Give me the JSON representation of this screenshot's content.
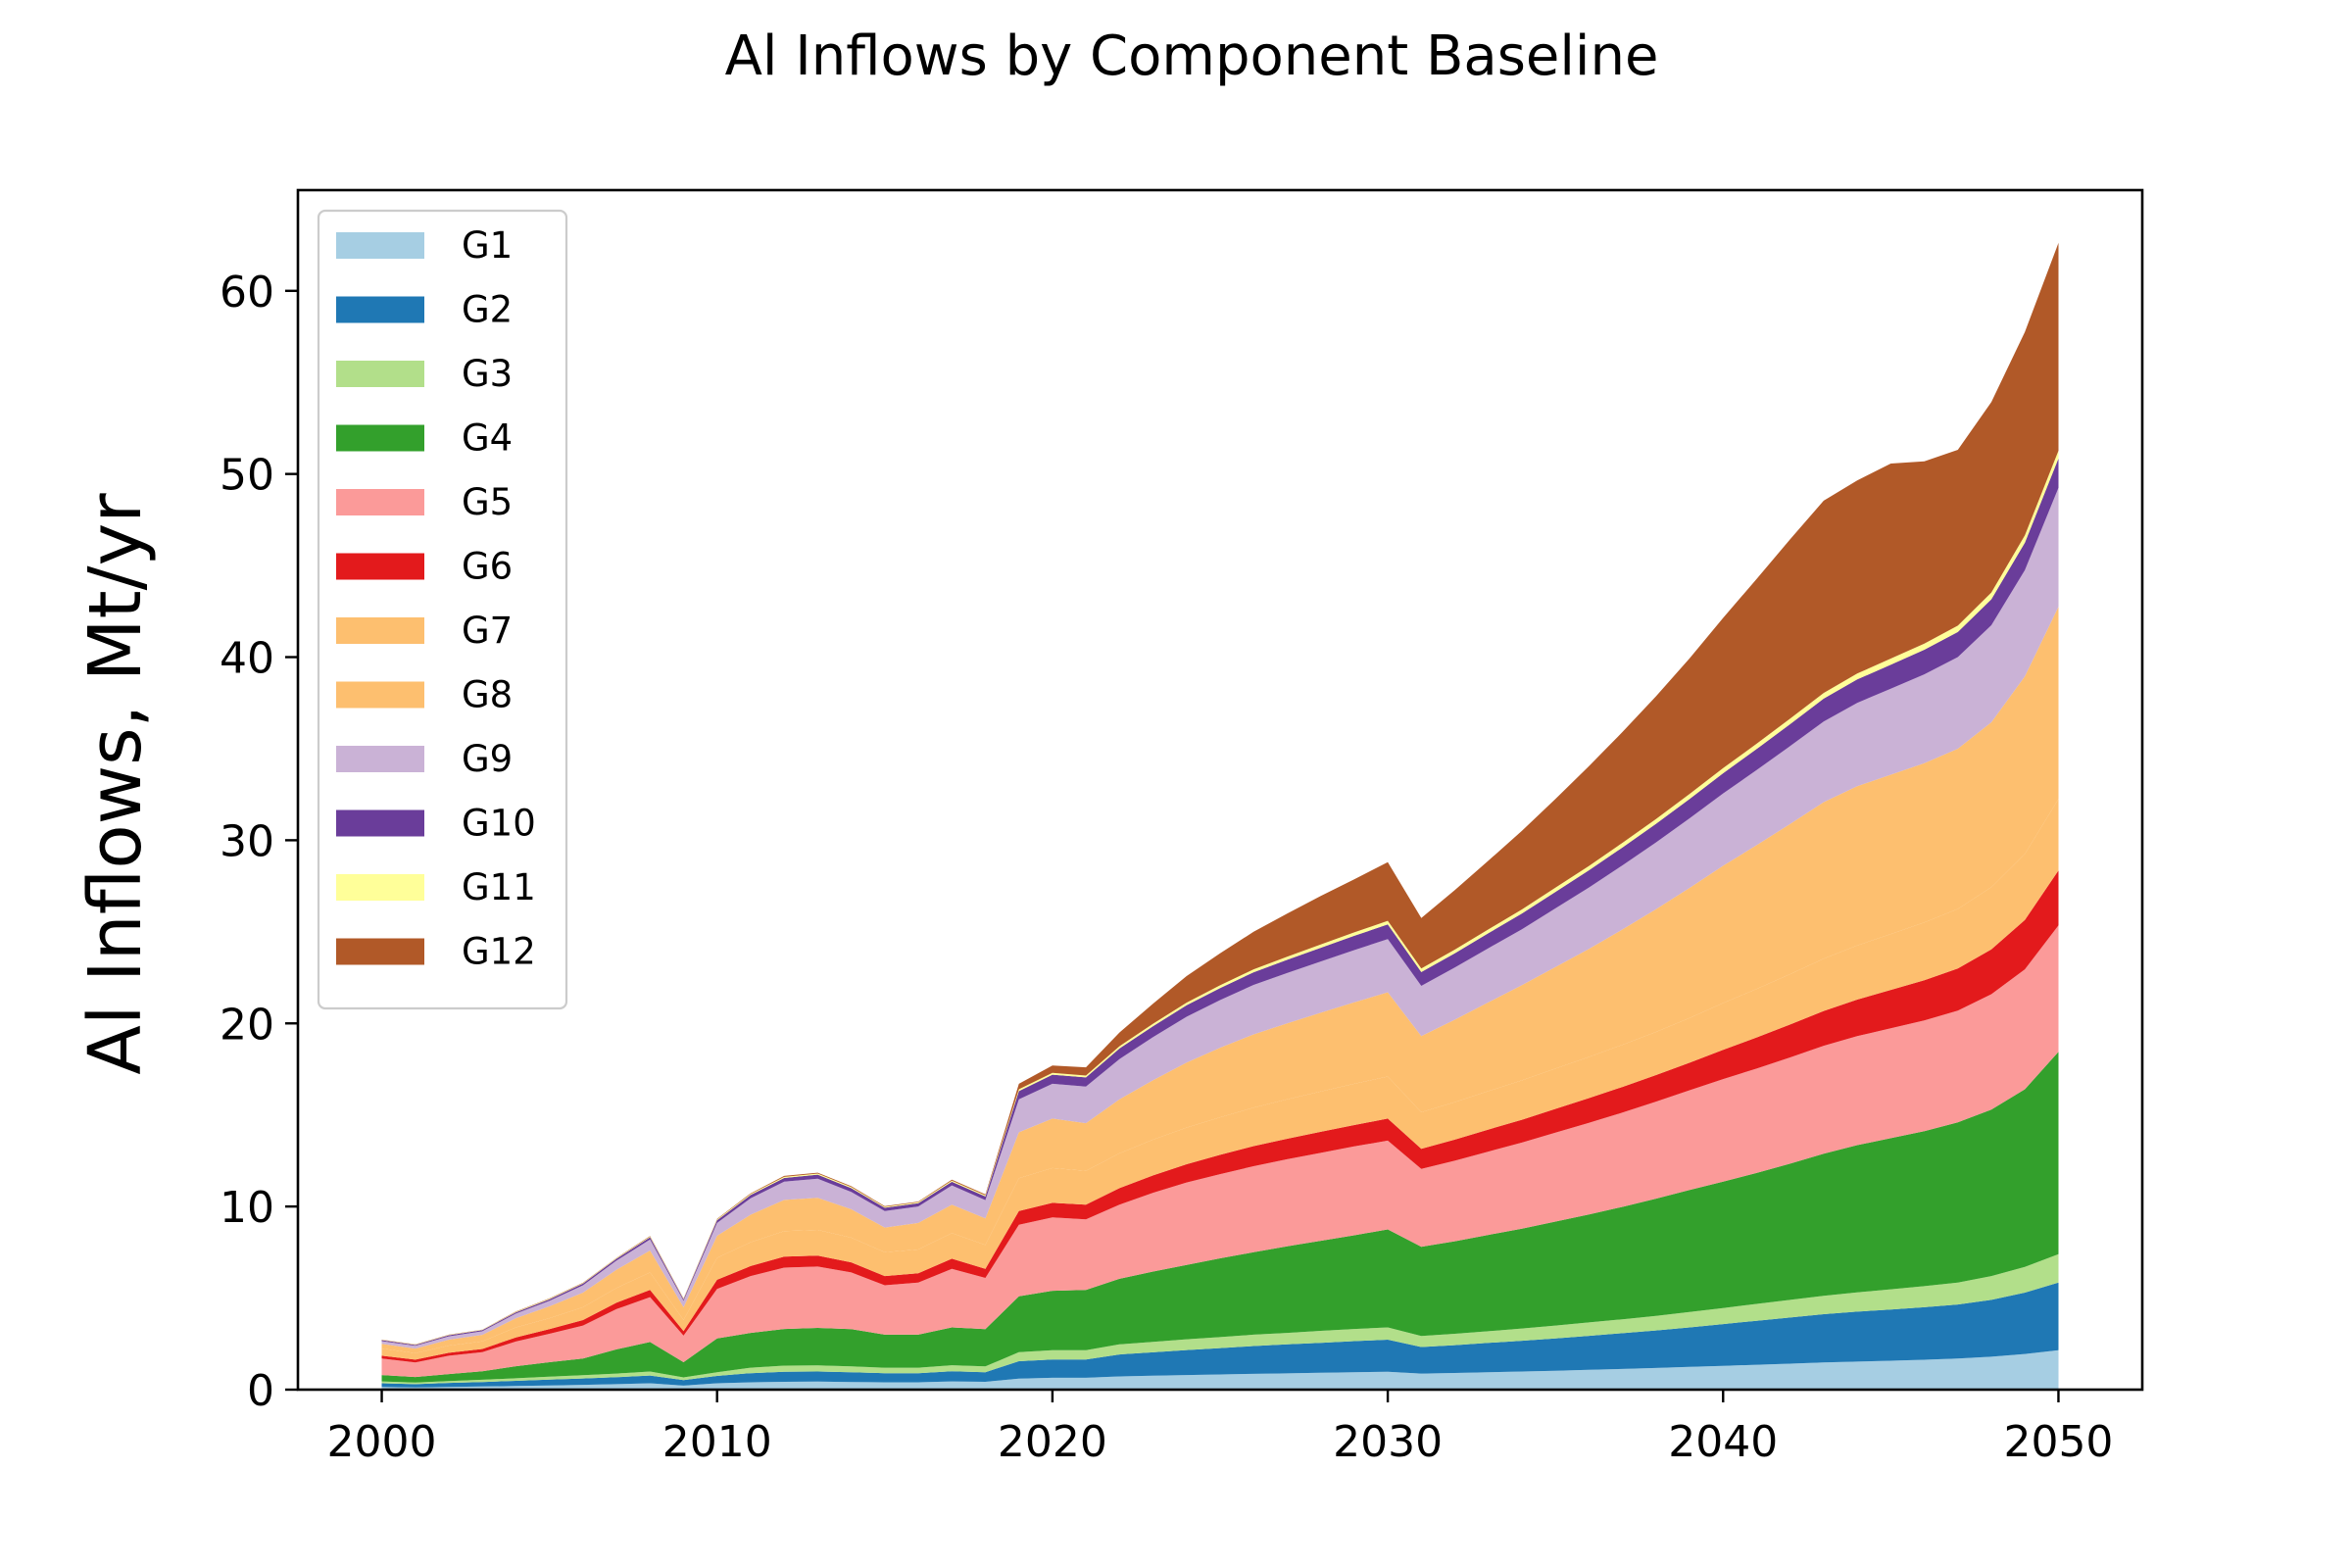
{
  "chart_data": {
    "type": "area",
    "stacked": true,
    "title": "Al Inflows by Component Baseline",
    "xlabel": "",
    "ylabel": "Al Inflows, Mt/yr",
    "xlim": [
      1997.5,
      2052.5
    ],
    "ylim": [
      0,
      65.5
    ],
    "xticks": [
      2000,
      2010,
      2020,
      2030,
      2040,
      2050
    ],
    "yticks": [
      0,
      10,
      20,
      30,
      40,
      50,
      60
    ],
    "legend_position": "upper-left",
    "grid": false,
    "x": [
      2000,
      2001,
      2002,
      2003,
      2004,
      2005,
      2006,
      2007,
      2008,
      2009,
      2010,
      2011,
      2012,
      2013,
      2014,
      2015,
      2016,
      2017,
      2018,
      2019,
      2020,
      2021,
      2022,
      2023,
      2024,
      2025,
      2026,
      2027,
      2028,
      2029,
      2030,
      2031,
      2032,
      2033,
      2034,
      2035,
      2036,
      2037,
      2038,
      2039,
      2040,
      2041,
      2042,
      2043,
      2044,
      2045,
      2046,
      2047,
      2048,
      2049,
      2050
    ],
    "series": [
      {
        "name": "G1",
        "color": "#a6cee3",
        "values": [
          0.15,
          0.12,
          0.15,
          0.17,
          0.2,
          0.23,
          0.26,
          0.3,
          0.35,
          0.22,
          0.35,
          0.4,
          0.43,
          0.44,
          0.42,
          0.4,
          0.4,
          0.45,
          0.43,
          0.6,
          0.65,
          0.65,
          0.72,
          0.76,
          0.8,
          0.83,
          0.86,
          0.89,
          0.92,
          0.95,
          0.98,
          0.88,
          0.91,
          0.95,
          0.99,
          1.03,
          1.08,
          1.13,
          1.18,
          1.24,
          1.3,
          1.36,
          1.42,
          1.48,
          1.53,
          1.58,
          1.63,
          1.7,
          1.8,
          1.95,
          2.15
        ]
      },
      {
        "name": "G2",
        "color": "#1f78b4",
        "values": [
          0.2,
          0.18,
          0.22,
          0.25,
          0.28,
          0.32,
          0.35,
          0.38,
          0.42,
          0.3,
          0.4,
          0.5,
          0.55,
          0.55,
          0.53,
          0.5,
          0.5,
          0.55,
          0.52,
          0.95,
          1.0,
          1.0,
          1.2,
          1.28,
          1.36,
          1.44,
          1.52,
          1.58,
          1.64,
          1.7,
          1.75,
          1.45,
          1.52,
          1.6,
          1.68,
          1.77,
          1.86,
          1.95,
          2.05,
          2.16,
          2.28,
          2.4,
          2.52,
          2.64,
          2.73,
          2.8,
          2.87,
          2.95,
          3.1,
          3.35,
          3.7
        ]
      },
      {
        "name": "G3",
        "color": "#b2df8a",
        "values": [
          0.1,
          0.09,
          0.1,
          0.12,
          0.14,
          0.16,
          0.18,
          0.2,
          0.22,
          0.15,
          0.2,
          0.3,
          0.33,
          0.33,
          0.32,
          0.3,
          0.3,
          0.33,
          0.32,
          0.5,
          0.5,
          0.5,
          0.55,
          0.57,
          0.59,
          0.6,
          0.62,
          0.63,
          0.65,
          0.66,
          0.67,
          0.6,
          0.62,
          0.64,
          0.67,
          0.7,
          0.73,
          0.76,
          0.8,
          0.84,
          0.88,
          0.92,
          0.96,
          1.0,
          1.05,
          1.1,
          1.15,
          1.2,
          1.3,
          1.4,
          1.55
        ]
      },
      {
        "name": "G4",
        "color": "#33a02c",
        "values": [
          0.35,
          0.3,
          0.38,
          0.46,
          0.66,
          0.79,
          0.91,
          1.32,
          1.61,
          0.83,
          1.85,
          1.9,
          2.0,
          2.05,
          2.03,
          1.8,
          1.8,
          2.07,
          2.03,
          3.05,
          3.25,
          3.3,
          3.58,
          3.84,
          4.06,
          4.3,
          4.5,
          4.73,
          4.92,
          5.12,
          5.35,
          4.87,
          5.05,
          5.26,
          5.45,
          5.68,
          5.9,
          6.14,
          6.4,
          6.66,
          6.9,
          7.15,
          7.44,
          7.76,
          8.04,
          8.25,
          8.46,
          8.75,
          9.09,
          9.7,
          11.05
        ]
      },
      {
        "name": "G5",
        "color": "#fb9a99",
        "values": [
          0.9,
          0.8,
          1.0,
          1.05,
          1.35,
          1.55,
          1.8,
          2.2,
          2.45,
          1.45,
          2.7,
          3.1,
          3.35,
          3.35,
          3.1,
          2.7,
          2.85,
          3.2,
          2.8,
          3.9,
          4.0,
          3.85,
          4.05,
          4.3,
          4.5,
          4.6,
          4.7,
          4.75,
          4.8,
          4.85,
          4.85,
          4.25,
          4.4,
          4.55,
          4.7,
          4.85,
          5.0,
          5.15,
          5.3,
          5.45,
          5.6,
          5.7,
          5.8,
          5.9,
          5.95,
          6.0,
          6.05,
          6.1,
          6.3,
          6.55,
          6.9
        ]
      },
      {
        "name": "G6",
        "color": "#e31a1c",
        "values": [
          0.15,
          0.15,
          0.16,
          0.17,
          0.22,
          0.25,
          0.3,
          0.35,
          0.4,
          0.25,
          0.5,
          0.55,
          0.6,
          0.6,
          0.55,
          0.5,
          0.5,
          0.55,
          0.5,
          0.75,
          0.8,
          0.8,
          0.9,
          0.95,
          1.0,
          1.05,
          1.1,
          1.12,
          1.15,
          1.17,
          1.2,
          1.1,
          1.15,
          1.2,
          1.25,
          1.3,
          1.35,
          1.4,
          1.45,
          1.5,
          1.6,
          1.7,
          1.8,
          1.9,
          2.0,
          2.1,
          2.2,
          2.3,
          2.45,
          2.7,
          3.0
        ]
      },
      {
        "name": "G7",
        "color": "#fdbf6f",
        "values": [
          0.4,
          0.35,
          0.4,
          0.42,
          0.55,
          0.6,
          0.7,
          0.8,
          0.95,
          0.6,
          1.2,
          1.3,
          1.4,
          1.4,
          1.35,
          1.3,
          1.3,
          1.4,
          1.3,
          1.8,
          1.9,
          1.85,
          1.9,
          1.95,
          2.0,
          2.05,
          2.1,
          2.15,
          2.2,
          2.25,
          2.3,
          2.0,
          2.05,
          2.1,
          2.15,
          2.2,
          2.25,
          2.3,
          2.35,
          2.45,
          2.55,
          2.65,
          2.75,
          2.85,
          2.95,
          3.05,
          3.15,
          3.25,
          3.4,
          3.6,
          3.9
        ]
      },
      {
        "name": "G8",
        "color": "#fdbf6f",
        "values": [
          0.25,
          0.25,
          0.32,
          0.35,
          0.5,
          0.65,
          0.8,
          1.0,
          1.2,
          0.7,
          1.2,
          1.5,
          1.7,
          1.75,
          1.55,
          1.35,
          1.45,
          1.55,
          1.45,
          2.5,
          2.7,
          2.6,
          2.95,
          3.25,
          3.55,
          3.8,
          4.0,
          4.15,
          4.3,
          4.45,
          4.6,
          4.15,
          4.5,
          4.85,
          5.2,
          5.55,
          5.9,
          6.3,
          6.7,
          7.1,
          7.5,
          7.85,
          8.2,
          8.55,
          8.7,
          8.7,
          8.7,
          8.75,
          9.0,
          9.7,
          10.5
        ]
      },
      {
        "name": "G9",
        "color": "#cab2d6",
        "values": [
          0.15,
          0.15,
          0.18,
          0.2,
          0.25,
          0.3,
          0.4,
          0.5,
          0.6,
          0.35,
          0.7,
          0.9,
          1.0,
          1.05,
          0.95,
          0.9,
          0.9,
          1.05,
          1.0,
          1.8,
          1.9,
          2.0,
          2.2,
          2.35,
          2.5,
          2.6,
          2.7,
          2.75,
          2.8,
          2.85,
          2.9,
          2.75,
          2.85,
          2.95,
          3.05,
          3.2,
          3.35,
          3.5,
          3.65,
          3.8,
          3.95,
          4.1,
          4.25,
          4.4,
          4.55,
          4.7,
          4.85,
          5.0,
          5.3,
          5.8,
          6.5
        ]
      },
      {
        "name": "G10",
        "color": "#6a3d9a",
        "values": [
          0.05,
          0.05,
          0.06,
          0.06,
          0.07,
          0.08,
          0.09,
          0.1,
          0.12,
          0.08,
          0.15,
          0.18,
          0.2,
          0.22,
          0.2,
          0.18,
          0.18,
          0.2,
          0.2,
          0.45,
          0.5,
          0.5,
          0.58,
          0.6,
          0.63,
          0.66,
          0.69,
          0.72,
          0.75,
          0.78,
          0.8,
          0.75,
          0.78,
          0.82,
          0.86,
          0.9,
          0.94,
          0.98,
          1.02,
          1.06,
          1.1,
          1.15,
          1.2,
          1.25,
          1.28,
          1.31,
          1.34,
          1.37,
          1.42,
          1.5,
          1.6
        ]
      },
      {
        "name": "G11",
        "color": "#ffff99",
        "values": [
          0.02,
          0.02,
          0.02,
          0.02,
          0.03,
          0.03,
          0.03,
          0.03,
          0.04,
          0.03,
          0.05,
          0.05,
          0.06,
          0.06,
          0.06,
          0.05,
          0.05,
          0.06,
          0.06,
          0.1,
          0.1,
          0.1,
          0.12,
          0.13,
          0.14,
          0.15,
          0.16,
          0.17,
          0.18,
          0.19,
          0.2,
          0.2,
          0.2,
          0.21,
          0.22,
          0.23,
          0.24,
          0.25,
          0.26,
          0.27,
          0.28,
          0.29,
          0.3,
          0.31,
          0.32,
          0.33,
          0.34,
          0.35,
          0.37,
          0.4,
          0.42
        ]
      },
      {
        "name": "G12",
        "color": "#b15928",
        "values": [
          0.01,
          0.01,
          0.01,
          0.01,
          0.02,
          0.02,
          0.02,
          0.02,
          0.03,
          0.02,
          0.03,
          0.04,
          0.05,
          0.05,
          0.05,
          0.04,
          0.04,
          0.05,
          0.05,
          0.3,
          0.4,
          0.45,
          0.75,
          1.1,
          1.45,
          1.75,
          2.05,
          2.35,
          2.65,
          2.9,
          3.2,
          2.75,
          3.25,
          3.75,
          4.3,
          4.85,
          5.45,
          6.05,
          6.7,
          7.4,
          8.2,
          9.0,
          9.8,
          10.5,
          10.55,
          10.65,
          9.95,
          9.6,
          10.4,
          11.1,
          11.35
        ]
      }
    ]
  }
}
